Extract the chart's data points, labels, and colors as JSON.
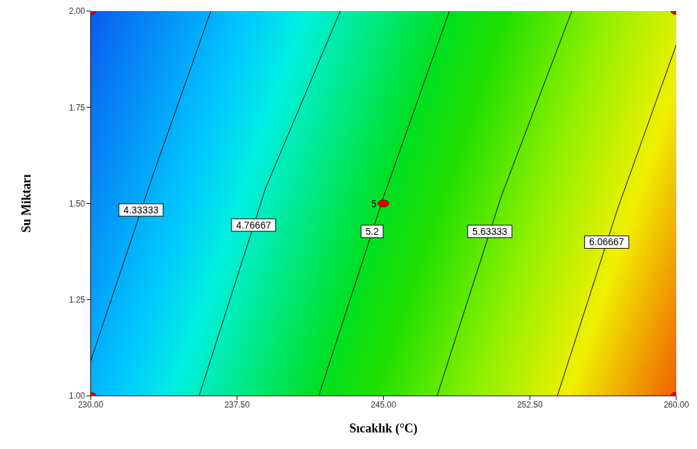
{
  "chart_data": {
    "type": "line",
    "xlabel": "Sıcaklık (°C)",
    "ylabel": "Su Miktarı",
    "xlim": [
      230,
      260
    ],
    "ylim": [
      1,
      2
    ],
    "xticks": [
      {
        "value": 230,
        "label": "230.00"
      },
      {
        "value": 237.5,
        "label": "237.50"
      },
      {
        "value": 245,
        "label": "245.00"
      },
      {
        "value": 252.5,
        "label": "252.50"
      },
      {
        "value": 260,
        "label": "260.00"
      }
    ],
    "yticks": [
      {
        "value": 1,
        "label": "1.00"
      },
      {
        "value": 1.25,
        "label": "1.25"
      },
      {
        "value": 1.5,
        "label": "1.50"
      },
      {
        "value": 1.75,
        "label": "1.75"
      },
      {
        "value": 2,
        "label": "2.00"
      }
    ],
    "series": [
      {
        "name": "4.33333",
        "color": "#000000",
        "x": [
          230,
          233.15,
          236.16
        ],
        "values": [
          1.09,
          1.567,
          2.0
        ]
      },
      {
        "name": "4.76667",
        "color": "#000000",
        "x": [
          235.56,
          238.96,
          242.79
        ],
        "values": [
          1.0,
          1.539,
          2.0
        ]
      },
      {
        "name": "5.2",
        "color": "#000000",
        "x": [
          241.69,
          245.02,
          248.38
        ],
        "values": [
          1.0,
          1.519,
          2.0
        ]
      },
      {
        "name": "5.63333",
        "color": "#000000",
        "x": [
          247.75,
          251.04,
          254.65
        ],
        "values": [
          1.0,
          1.519,
          2.0
        ]
      },
      {
        "name": "6.06667",
        "color": "#000000",
        "x": [
          253.91,
          256.99,
          260
        ],
        "values": [
          1.0,
          1.485,
          1.912
        ]
      },
      {
        "type": "scatter",
        "color": "#e00000",
        "marker": "circle",
        "x": [
          230,
          230,
          260,
          260,
          245
        ],
        "values": [
          1,
          2,
          1,
          2,
          1.5
        ]
      }
    ],
    "annotations": [
      {
        "text": "5",
        "x": 245,
        "y": 1.5
      }
    ],
    "grid": false,
    "line_style": "solid"
  }
}
